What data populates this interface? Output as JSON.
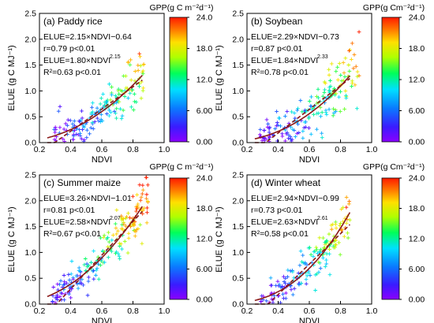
{
  "chart_data": [
    {
      "type": "scatter",
      "panel_label": "(a)",
      "title": "Paddy rice",
      "xlabel": "NDVI",
      "ylabel": "ELUE (g C MJ⁻¹)",
      "xlim": [
        0.2,
        1.0
      ],
      "ylim": [
        0,
        2.5
      ],
      "xticks": [
        "0.2",
        "0.4",
        "0.6",
        "0.8",
        "1.0"
      ],
      "yticks": [
        "0.0",
        "0.5",
        "1.0",
        "1.5",
        "2.0",
        "2.5"
      ],
      "colorbar": {
        "label": "GPP(g C m⁻²d⁻¹)",
        "min": 0,
        "max": 24,
        "ticks": [
          "0.00",
          "6.00",
          "12.0",
          "18.0",
          "24.0"
        ]
      },
      "annotations": [
        "ELUE=2.15×NDVI−0.64",
        "r=0.79   p<0.01",
        "ELUE=1.80×NDVI",
        "2.15",
        "R²=0.63   p<0.01"
      ],
      "fits": {
        "linear": {
          "slope": 2.15,
          "intercept": -0.64
        },
        "power": {
          "a": 1.8,
          "b": 2.15
        }
      },
      "points": {
        "n": 170,
        "x_range": [
          0.27,
          0.87
        ],
        "seed": 11
      }
    },
    {
      "type": "scatter",
      "panel_label": "(b)",
      "title": "Soybean",
      "xlabel": "NDVI",
      "ylabel": "ELUE (g C MJ⁻¹)",
      "xlim": [
        0.2,
        1.0
      ],
      "ylim": [
        0,
        2.5
      ],
      "xticks": [
        "0.2",
        "0.4",
        "0.6",
        "0.8",
        "1.0"
      ],
      "yticks": [
        "0.0",
        "0.5",
        "1.0",
        "1.5",
        "2.0",
        "2.5"
      ],
      "colorbar": {
        "label": "GPP(g Cm⁻²d⁻¹)",
        "min": 0,
        "max": 24,
        "ticks": [
          "0.00",
          "6.00",
          "12.0",
          "18.0",
          "24.0"
        ]
      },
      "annotations": [
        "ELUE=2.29×NDVI−0.73",
        "r=0.87   p<0.01",
        "ELUE=1.84×NDVI",
        "2.33",
        "R²=0.78   p<0.01"
      ],
      "fits": {
        "linear": {
          "slope": 2.29,
          "intercept": -0.73
        },
        "power": {
          "a": 1.84,
          "b": 2.33
        }
      },
      "points": {
        "n": 190,
        "x_range": [
          0.27,
          0.92
        ],
        "seed": 23
      }
    },
    {
      "type": "scatter",
      "panel_label": "(c)",
      "title": "Summer maize",
      "xlabel": "NDVI",
      "ylabel": "ELUE (g C MJ⁻¹)",
      "xlim": [
        0.2,
        1.0
      ],
      "ylim": [
        0,
        2.5
      ],
      "xticks": [
        "0.2",
        "0.4",
        "0.6",
        "0.8",
        "1.0"
      ],
      "yticks": [
        "0.0",
        "0.5",
        "1.0",
        "1.5",
        "2.0",
        "2.5"
      ],
      "colorbar": {
        "label": "GPP(g C m⁻²d⁻¹)",
        "min": 0,
        "max": 24,
        "ticks": [
          "0.00",
          "6.00",
          "12.0",
          "18.0",
          "24.0"
        ]
      },
      "annotations": [
        "ELUE=3.26×NDVI−1.01",
        "r=0.81   p<0.01",
        "ELUE=2.58×NDVI",
        "2.07",
        "R²=0.67   p<0.01"
      ],
      "fits": {
        "linear": {
          "slope": 3.26,
          "intercept": -1.01
        },
        "power": {
          "a": 2.58,
          "b": 2.07
        }
      },
      "points": {
        "n": 200,
        "x_range": [
          0.27,
          0.9
        ],
        "seed": 37
      }
    },
    {
      "type": "scatter",
      "panel_label": "(d)",
      "title": "Winter wheat",
      "xlabel": "NDVI",
      "ylabel": "ELUE (g C MJ⁻¹)",
      "xlim": [
        0.2,
        1.0
      ],
      "ylim": [
        0,
        2.5
      ],
      "xticks": [
        "0.2",
        "0.4",
        "0.6",
        "0.8",
        "1.0"
      ],
      "yticks": [
        "0.0",
        "0.5",
        "1.0",
        "1.5",
        "2.0",
        "2.5"
      ],
      "colorbar": {
        "label": "GPP(g Cm⁻²d⁻¹)",
        "min": 0,
        "max": 24,
        "ticks": [
          "0.00",
          "6.00",
          "12.0",
          "18.0",
          "24.0"
        ]
      },
      "annotations": [
        "ELUE=2.94×NDVI−0.99",
        "r=0.73   p<0.01",
        "ELUE=2.63×NDVI",
        "2.61",
        "R²=0.58   p<0.01"
      ],
      "fits": {
        "linear": {
          "slope": 2.94,
          "intercept": -0.99
        },
        "power": {
          "a": 2.63,
          "b": 2.61
        }
      },
      "points": {
        "n": 170,
        "x_range": [
          0.28,
          0.86
        ],
        "seed": 53
      }
    }
  ],
  "colors": {
    "linear_fit": "#8b1a1a",
    "power_fit": "#e8751a",
    "colormap": [
      "#8a00ff",
      "#3a1bff",
      "#0a7bff",
      "#00e0ff",
      "#00ff5a",
      "#b0ff00",
      "#ffe000",
      "#ff7a00",
      "#ff1a00"
    ]
  }
}
